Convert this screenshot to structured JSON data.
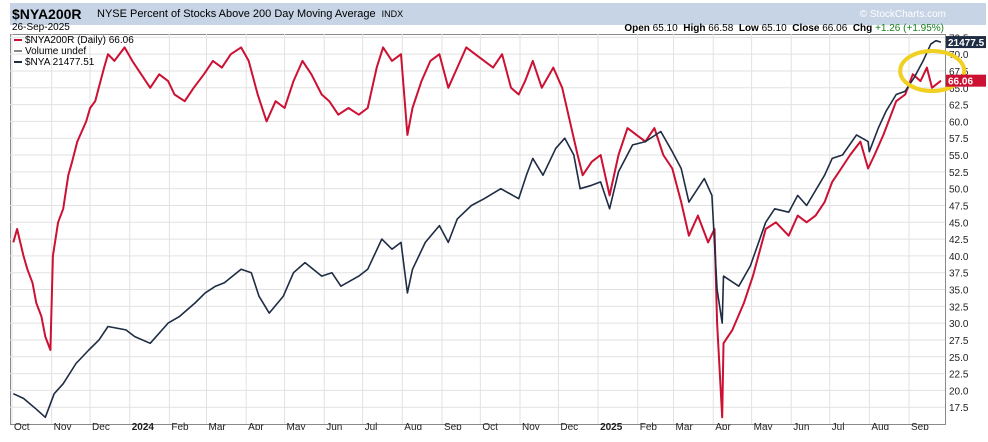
{
  "header": {
    "symbol": "$NYA200R",
    "description": "NYSE Percent of Stocks Above 200 Day Moving Average",
    "exchange": "INDX",
    "date": "26-Sep-2025",
    "copyright": "© StockCharts.com",
    "open_label": "Open",
    "open": "65.10",
    "high_label": "High",
    "high": "66.58",
    "low_label": "Low",
    "low": "65.10",
    "close_label": "Close",
    "close": "66.06",
    "chg_label": "Chg",
    "chg": "+1.26 (+1.95%)"
  },
  "legend": {
    "item1": "$NYA200R (Daily) 66.06",
    "item2": "Volume undef",
    "item3": "$NYA 21477.51"
  },
  "colors": {
    "pct_line": "#cc1133",
    "nya_line": "#1e2c44",
    "header_bg": "#c7d4e6",
    "highlight_circle": "#f0d020",
    "grid": "#e2e2e2",
    "value_box_pct": "#cc1133",
    "value_box_nya": "#1e2c44"
  },
  "chart_data": {
    "type": "line",
    "x_axis": {
      "range": [
        "2023-10-01",
        "2025-09-26"
      ],
      "tick_labels": [
        "Oct",
        "Nov",
        "Dec",
        "2024",
        "Feb",
        "Mar",
        "Apr",
        "May",
        "Jun",
        "Jul",
        "Aug",
        "Sep",
        "Oct",
        "Nov",
        "Dec",
        "2025",
        "Feb",
        "Mar",
        "Apr",
        "May",
        "Jun",
        "Jul",
        "Aug",
        "Sep"
      ]
    },
    "y_axis": {
      "position": "right",
      "range": [
        15,
        73
      ],
      "tick_labels": [
        "17.5",
        "20.0",
        "22.5",
        "25.0",
        "27.5",
        "30.0",
        "32.5",
        "35.0",
        "37.5",
        "40.0",
        "42.5",
        "45.0",
        "47.5",
        "50.0",
        "52.5",
        "55.0",
        "57.5",
        "60.0",
        "62.5",
        "65.0",
        "67.5",
        "70.0",
        "72.5"
      ]
    },
    "last_value_labels": {
      "nya": "21477.5",
      "pct": "66.06"
    },
    "grid": true,
    "annotation": "yellow ellipse around recent Sept 2025 divergence",
    "series": [
      {
        "name": "$NYA200R (Daily)",
        "axis": "right",
        "color": "#cc1133",
        "points": [
          [
            "2023-10-02",
            42
          ],
          [
            "2023-10-05",
            44
          ],
          [
            "2023-10-10",
            40
          ],
          [
            "2023-10-13",
            38
          ],
          [
            "2023-10-17",
            36
          ],
          [
            "2023-10-20",
            33
          ],
          [
            "2023-10-24",
            31
          ],
          [
            "2023-10-27",
            28
          ],
          [
            "2023-10-31",
            26
          ],
          [
            "2023-11-02",
            40
          ],
          [
            "2023-11-06",
            45
          ],
          [
            "2023-11-10",
            47
          ],
          [
            "2023-11-14",
            52
          ],
          [
            "2023-11-17",
            54
          ],
          [
            "2023-11-21",
            57
          ],
          [
            "2023-11-28",
            60
          ],
          [
            "2023-12-01",
            62
          ],
          [
            "2023-12-05",
            63
          ],
          [
            "2023-12-12",
            68
          ],
          [
            "2023-12-15",
            70
          ],
          [
            "2023-12-20",
            69
          ],
          [
            "2023-12-28",
            71
          ],
          [
            "2024-01-03",
            69
          ],
          [
            "2024-01-10",
            67
          ],
          [
            "2024-01-17",
            65
          ],
          [
            "2024-01-24",
            67
          ],
          [
            "2024-01-31",
            66
          ],
          [
            "2024-02-05",
            64
          ],
          [
            "2024-02-13",
            63
          ],
          [
            "2024-02-20",
            65
          ],
          [
            "2024-02-28",
            67
          ],
          [
            "2024-03-06",
            69
          ],
          [
            "2024-03-13",
            68
          ],
          [
            "2024-03-20",
            70
          ],
          [
            "2024-03-28",
            71
          ],
          [
            "2024-04-03",
            69
          ],
          [
            "2024-04-10",
            64
          ],
          [
            "2024-04-17",
            60
          ],
          [
            "2024-04-24",
            63
          ],
          [
            "2024-05-01",
            62
          ],
          [
            "2024-05-08",
            66
          ],
          [
            "2024-05-15",
            69
          ],
          [
            "2024-05-22",
            67
          ],
          [
            "2024-05-30",
            64
          ],
          [
            "2024-06-05",
            63
          ],
          [
            "2024-06-12",
            61
          ],
          [
            "2024-06-20",
            62
          ],
          [
            "2024-06-28",
            61
          ],
          [
            "2024-07-05",
            62
          ],
          [
            "2024-07-12",
            68
          ],
          [
            "2024-07-17",
            71
          ],
          [
            "2024-07-24",
            69
          ],
          [
            "2024-07-31",
            70
          ],
          [
            "2024-08-05",
            58
          ],
          [
            "2024-08-09",
            62
          ],
          [
            "2024-08-16",
            66
          ],
          [
            "2024-08-23",
            69
          ],
          [
            "2024-08-30",
            70
          ],
          [
            "2024-09-06",
            65
          ],
          [
            "2024-09-13",
            68
          ],
          [
            "2024-09-20",
            71
          ],
          [
            "2024-09-27",
            70
          ],
          [
            "2024-10-04",
            69
          ],
          [
            "2024-10-11",
            68
          ],
          [
            "2024-10-18",
            70
          ],
          [
            "2024-10-25",
            65
          ],
          [
            "2024-10-31",
            64
          ],
          [
            "2024-11-05",
            66
          ],
          [
            "2024-11-11",
            69
          ],
          [
            "2024-11-18",
            65
          ],
          [
            "2024-11-27",
            68
          ],
          [
            "2024-12-04",
            65
          ],
          [
            "2024-12-10",
            60
          ],
          [
            "2024-12-16",
            55
          ],
          [
            "2024-12-20",
            52
          ],
          [
            "2024-12-27",
            54
          ],
          [
            "2025-01-03",
            55
          ],
          [
            "2025-01-10",
            49
          ],
          [
            "2025-01-17",
            55
          ],
          [
            "2025-01-24",
            59
          ],
          [
            "2025-01-31",
            58
          ],
          [
            "2025-02-07",
            57
          ],
          [
            "2025-02-14",
            59
          ],
          [
            "2025-02-21",
            55
          ],
          [
            "2025-02-28",
            53
          ],
          [
            "2025-03-07",
            48
          ],
          [
            "2025-03-13",
            43
          ],
          [
            "2025-03-20",
            46
          ],
          [
            "2025-03-28",
            42
          ],
          [
            "2025-04-02",
            44
          ],
          [
            "2025-04-04",
            30
          ],
          [
            "2025-04-08",
            16
          ],
          [
            "2025-04-09",
            27
          ],
          [
            "2025-04-16",
            29
          ],
          [
            "2025-04-25",
            33
          ],
          [
            "2025-05-02",
            37
          ],
          [
            "2025-05-12",
            44
          ],
          [
            "2025-05-20",
            45
          ],
          [
            "2025-05-30",
            43
          ],
          [
            "2025-06-06",
            46
          ],
          [
            "2025-06-13",
            45
          ],
          [
            "2025-06-20",
            46
          ],
          [
            "2025-06-27",
            48
          ],
          [
            "2025-07-03",
            51
          ],
          [
            "2025-07-10",
            53
          ],
          [
            "2025-07-17",
            55
          ],
          [
            "2025-07-25",
            57
          ],
          [
            "2025-07-31",
            53
          ],
          [
            "2025-08-05",
            55
          ],
          [
            "2025-08-12",
            58
          ],
          [
            "2025-08-22",
            63
          ],
          [
            "2025-08-29",
            64
          ],
          [
            "2025-09-04",
            67
          ],
          [
            "2025-09-10",
            66
          ],
          [
            "2025-09-15",
            68
          ],
          [
            "2025-09-19",
            65
          ],
          [
            "2025-09-26",
            66.06
          ]
        ]
      },
      {
        "name": "$NYA",
        "axis": "right",
        "color": "#1e2c44",
        "points": [
          [
            "2023-10-02",
            19.5
          ],
          [
            "2023-10-10",
            18.8
          ],
          [
            "2023-10-20",
            17.2
          ],
          [
            "2023-10-27",
            16.0
          ],
          [
            "2023-11-03",
            19.5
          ],
          [
            "2023-11-10",
            21.0
          ],
          [
            "2023-11-20",
            24.0
          ],
          [
            "2023-11-30",
            26.0
          ],
          [
            "2023-12-08",
            27.5
          ],
          [
            "2023-12-15",
            29.5
          ],
          [
            "2023-12-29",
            29.0
          ],
          [
            "2024-01-05",
            28.0
          ],
          [
            "2024-01-17",
            27.0
          ],
          [
            "2024-01-31",
            30.0
          ],
          [
            "2024-02-09",
            31.0
          ],
          [
            "2024-02-21",
            33.0
          ],
          [
            "2024-02-29",
            34.5
          ],
          [
            "2024-03-08",
            35.5
          ],
          [
            "2024-03-15",
            36.0
          ],
          [
            "2024-03-28",
            38.0
          ],
          [
            "2024-04-05",
            37.5
          ],
          [
            "2024-04-11",
            34.0
          ],
          [
            "2024-04-19",
            31.5
          ],
          [
            "2024-04-30",
            34.0
          ],
          [
            "2024-05-08",
            37.5
          ],
          [
            "2024-05-17",
            39.0
          ],
          [
            "2024-05-30",
            37.0
          ],
          [
            "2024-06-07",
            37.5
          ],
          [
            "2024-06-14",
            35.5
          ],
          [
            "2024-06-28",
            37.0
          ],
          [
            "2024-07-05",
            38.0
          ],
          [
            "2024-07-16",
            42.5
          ],
          [
            "2024-07-24",
            41.0
          ],
          [
            "2024-07-31",
            42.0
          ],
          [
            "2024-08-05",
            34.5
          ],
          [
            "2024-08-09",
            38.0
          ],
          [
            "2024-08-19",
            42.0
          ],
          [
            "2024-08-30",
            44.5
          ],
          [
            "2024-09-06",
            42.0
          ],
          [
            "2024-09-13",
            45.5
          ],
          [
            "2024-09-24",
            47.5
          ],
          [
            "2024-10-04",
            48.5
          ],
          [
            "2024-10-17",
            50.0
          ],
          [
            "2024-10-31",
            48.5
          ],
          [
            "2024-11-06",
            52.0
          ],
          [
            "2024-11-11",
            54.5
          ],
          [
            "2024-11-19",
            52.0
          ],
          [
            "2024-11-29",
            56.0
          ],
          [
            "2024-12-06",
            57.5
          ],
          [
            "2024-12-13",
            55.0
          ],
          [
            "2024-12-18",
            50.0
          ],
          [
            "2024-12-27",
            50.5
          ],
          [
            "2025-01-03",
            51.0
          ],
          [
            "2025-01-10",
            47.0
          ],
          [
            "2025-01-17",
            52.5
          ],
          [
            "2025-01-28",
            56.5
          ],
          [
            "2025-02-07",
            57.0
          ],
          [
            "2025-02-19",
            58.5
          ],
          [
            "2025-02-28",
            55.5
          ],
          [
            "2025-03-07",
            53.0
          ],
          [
            "2025-03-13",
            48.0
          ],
          [
            "2025-03-25",
            51.5
          ],
          [
            "2025-03-31",
            49.0
          ],
          [
            "2025-04-04",
            35.0
          ],
          [
            "2025-04-08",
            30.0
          ],
          [
            "2025-04-09",
            37.0
          ],
          [
            "2025-04-21",
            35.5
          ],
          [
            "2025-04-30",
            38.5
          ],
          [
            "2025-05-12",
            45.0
          ],
          [
            "2025-05-19",
            47.0
          ],
          [
            "2025-05-30",
            46.5
          ],
          [
            "2025-06-06",
            49.0
          ],
          [
            "2025-06-13",
            47.5
          ],
          [
            "2025-06-27",
            52.0
          ],
          [
            "2025-07-03",
            54.5
          ],
          [
            "2025-07-11",
            55.0
          ],
          [
            "2025-07-22",
            58.0
          ],
          [
            "2025-07-31",
            57.0
          ],
          [
            "2025-08-01",
            55.5
          ],
          [
            "2025-08-08",
            59.0
          ],
          [
            "2025-08-14",
            61.5
          ],
          [
            "2025-08-22",
            64.0
          ],
          [
            "2025-08-29",
            64.5
          ],
          [
            "2025-09-05",
            66.5
          ],
          [
            "2025-09-12",
            69.0
          ],
          [
            "2025-09-18",
            71.5
          ],
          [
            "2025-09-22",
            72.0
          ],
          [
            "2025-09-26",
            71.8
          ]
        ]
      }
    ]
  }
}
